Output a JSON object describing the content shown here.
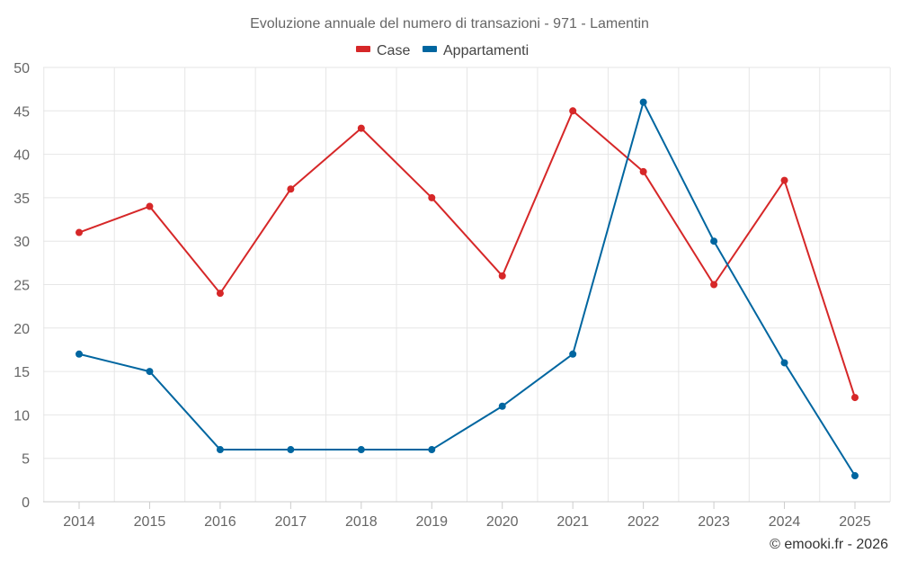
{
  "chart_data": {
    "type": "line",
    "title": "Evoluzione annuale del numero di transazioni - 971 - Lamentin",
    "categories": [
      "2014",
      "2015",
      "2016",
      "2017",
      "2018",
      "2019",
      "2020",
      "2021",
      "2022",
      "2023",
      "2024",
      "2025"
    ],
    "series": [
      {
        "name": "Case",
        "color": "#d62728",
        "values": [
          31,
          34,
          24,
          36,
          43,
          35,
          26,
          45,
          38,
          25,
          37,
          12
        ]
      },
      {
        "name": "Appartamenti",
        "color": "#0066a0",
        "values": [
          17,
          15,
          6,
          6,
          6,
          6,
          11,
          17,
          46,
          30,
          16,
          3
        ]
      }
    ],
    "ylim": [
      0,
      50
    ],
    "yticks": [
      0,
      5,
      10,
      15,
      20,
      25,
      30,
      35,
      40,
      45,
      50
    ],
    "xlabel": "",
    "ylabel": "",
    "grid": true,
    "legend": "top-center"
  },
  "credit": "© emooki.fr - 2026"
}
